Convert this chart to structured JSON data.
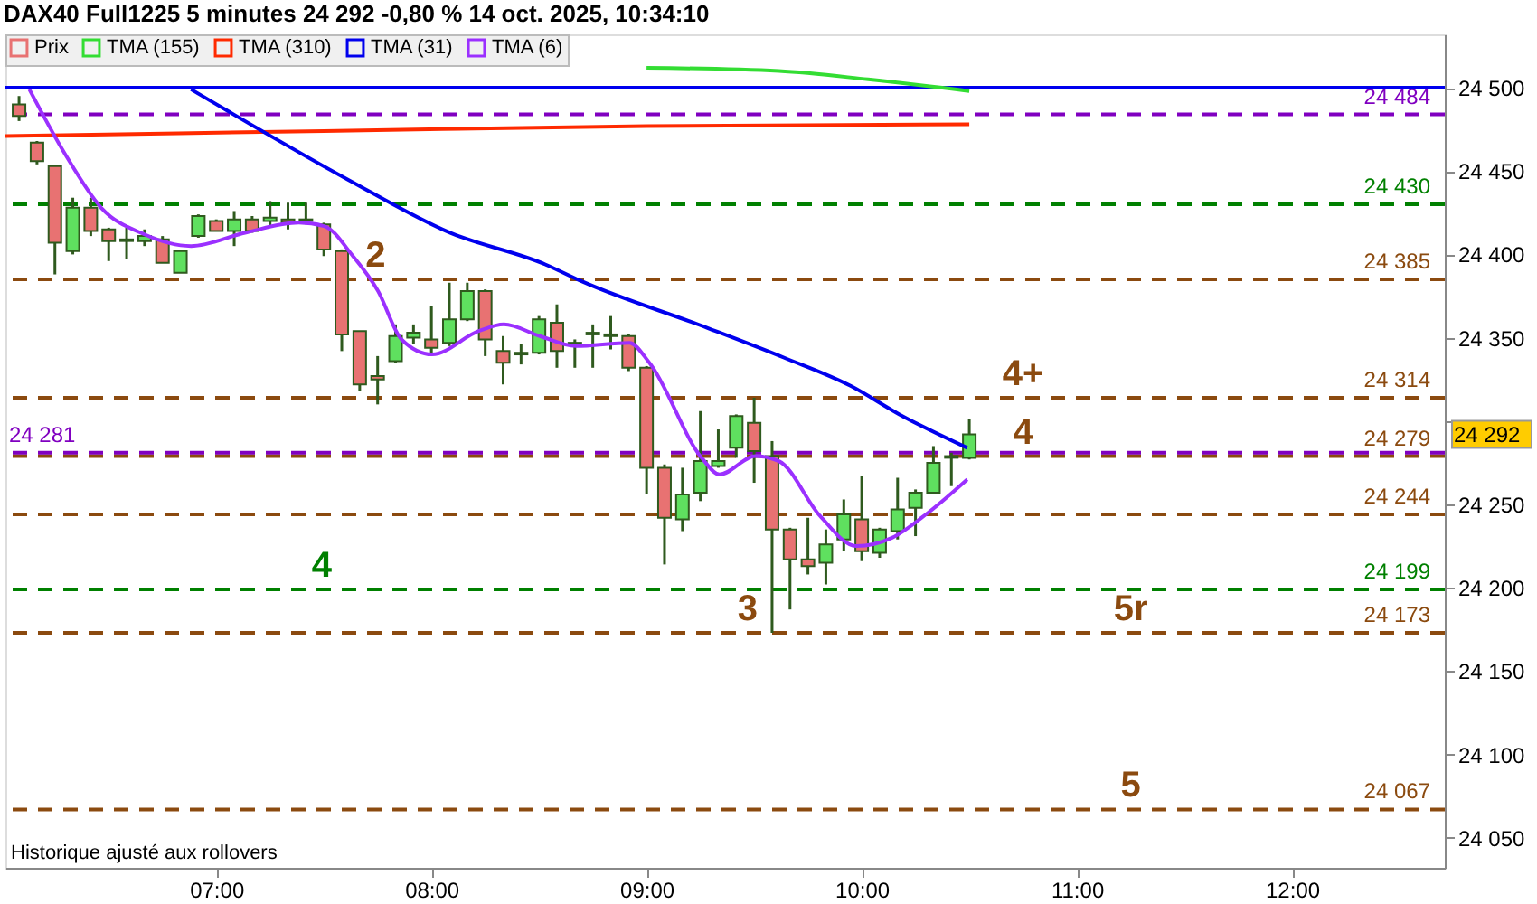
{
  "chart_data": {
    "type": "candlestick",
    "title": "DAX40 Full1225 5 minutes 24 292 -0,80 % 14 oct. 2025, 10:34:10",
    "legend": "top left",
    "grid": false,
    "xlim": [
      6.02,
      12.71
    ],
    "xticks": [
      {
        "value": 7,
        "label": "07:00"
      },
      {
        "value": 8,
        "label": "08:00"
      },
      {
        "value": 9,
        "label": "09:00"
      },
      {
        "value": 10,
        "label": "10:00"
      },
      {
        "value": 11,
        "label": "11:00"
      },
      {
        "value": 12,
        "label": "12:00"
      }
    ],
    "ylim": [
      24032,
      24532
    ],
    "yticks": [
      {
        "value": 24050,
        "label": "24 050"
      },
      {
        "value": 24100,
        "label": "24 100"
      },
      {
        "value": 24150,
        "label": "24 150"
      },
      {
        "value": 24200,
        "label": "24 200"
      },
      {
        "value": 24250,
        "label": "24 250"
      },
      {
        "value": 24300,
        "label": null
      },
      {
        "value": 24350,
        "label": "24 350"
      },
      {
        "value": 24400,
        "label": "24 400"
      },
      {
        "value": 24450,
        "label": "24 450"
      },
      {
        "value": 24500,
        "label": "24 500"
      }
    ],
    "series": [
      {
        "name": "Prix",
        "type": "candlestick",
        "color": "#e87272",
        "value_labels": [
          null,
          null,
          null,
          null,
          null,
          null,
          null,
          null,
          null,
          null,
          null,
          null,
          null,
          null,
          null,
          null,
          null,
          null,
          null,
          null,
          null,
          null,
          null,
          null,
          null,
          null,
          null,
          null,
          null,
          null,
          null,
          null,
          null,
          null,
          null,
          null,
          null,
          null,
          null,
          null,
          null,
          null,
          null,
          null,
          null,
          null,
          null,
          null,
          null,
          null,
          null,
          null,
          null,
          "24 292"
        ],
        "x": [
          6.0833,
          6.1667,
          6.25,
          6.3333,
          6.4167,
          6.5,
          6.5833,
          6.6667,
          6.75,
          6.8333,
          6.9167,
          7,
          7.0833,
          7.1667,
          7.25,
          7.3333,
          7.4167,
          7.5,
          7.5833,
          7.6667,
          7.75,
          7.8333,
          7.9167,
          8,
          8.0833,
          8.1667,
          8.25,
          8.3333,
          8.4167,
          8.5,
          8.5833,
          8.6667,
          8.75,
          8.8333,
          8.9167,
          9,
          9.0833,
          9.1667,
          9.25,
          9.3333,
          9.4167,
          9.5,
          9.5833,
          9.6667,
          9.75,
          9.8333,
          9.9167,
          10,
          10.0833,
          10.1667,
          10.25,
          10.3333,
          10.4167,
          10.5
        ],
        "ohlc": [
          [
            24490,
            24495,
            24480,
            24483
          ],
          [
            24467,
            24468,
            24454,
            24456
          ],
          [
            24453,
            24453,
            24388,
            24407
          ],
          [
            24402,
            24434,
            24400,
            24428
          ],
          [
            24428,
            24434,
            24411,
            24414
          ],
          [
            24415,
            24416,
            24396,
            24408
          ],
          [
            24408,
            24416,
            24397,
            24409
          ],
          [
            24408,
            24415,
            24405,
            24411
          ],
          [
            24409,
            24411,
            24395,
            24395
          ],
          [
            24389,
            24402,
            24389,
            24402
          ],
          [
            24411,
            24424,
            24410,
            24423
          ],
          [
            24420,
            24421,
            24414,
            24414
          ],
          [
            24414,
            24426,
            24405,
            24421
          ],
          [
            24421,
            24423,
            24413,
            24414
          ],
          [
            24420,
            24432,
            24417,
            24422
          ],
          [
            24421,
            24431,
            24415,
            24419
          ],
          [
            24420,
            24431,
            24418,
            24421
          ],
          [
            24418,
            24419,
            24399,
            24403
          ],
          [
            24402,
            24403,
            24342,
            24352
          ],
          [
            24354,
            24354,
            24318,
            24322
          ],
          [
            24327,
            24339,
            24310,
            24325
          ],
          [
            24336,
            24358,
            24335,
            24351
          ],
          [
            24350,
            24358,
            24346,
            24353
          ],
          [
            24349,
            24369,
            24340,
            24344
          ],
          [
            24347,
            24383,
            24345,
            24361
          ],
          [
            24361,
            24383,
            24360,
            24378
          ],
          [
            24378,
            24379,
            24339,
            24349
          ],
          [
            24342,
            24351,
            24322,
            24335
          ],
          [
            24340,
            24346,
            24334,
            24341
          ],
          [
            24341,
            24363,
            24340,
            24361
          ],
          [
            24359,
            24370,
            24332,
            24342
          ],
          [
            24346,
            24349,
            24332,
            24347
          ],
          [
            24352,
            24358,
            24332,
            24353
          ],
          [
            24351,
            24363,
            24343,
            24352
          ],
          [
            24351,
            24352,
            24330,
            24332
          ],
          [
            24332,
            24333,
            24256,
            24272
          ],
          [
            24272,
            24274,
            24214,
            24242
          ],
          [
            24241,
            24272,
            24234,
            24256
          ],
          [
            24257,
            24306,
            24252,
            24276
          ],
          [
            24273,
            24295,
            24272,
            24276
          ],
          [
            24284,
            24304,
            24278,
            24303
          ],
          [
            24299,
            24314,
            24263,
            24282
          ],
          [
            24279,
            24288,
            24173,
            24235
          ],
          [
            24235,
            24236,
            24187,
            24217
          ],
          [
            24217,
            24242,
            24208,
            24213
          ],
          [
            24215,
            24235,
            24202,
            24226
          ],
          [
            24229,
            24253,
            24222,
            24244
          ],
          [
            24241,
            24267,
            24216,
            24222
          ],
          [
            24221,
            24236,
            24218,
            24235
          ],
          [
            24234,
            24266,
            24229,
            24247
          ],
          [
            24248,
            24259,
            24231,
            24257
          ],
          [
            24257,
            24285,
            24256,
            24275
          ],
          [
            24278,
            24281,
            24261,
            24279
          ],
          [
            24278,
            24301,
            24277,
            24292
          ]
        ],
        "colors": [
          "#e87272",
          "#e87272",
          "#e87272",
          "#5fe05f",
          "#e87272",
          "#e87272",
          "#5fe05f",
          "#5fe05f",
          "#e87272",
          "#5fe05f",
          "#5fe05f",
          "#e87272",
          "#5fe05f",
          "#e87272",
          "#5fe05f",
          "#e87272",
          "#5fe05f",
          "#e87272",
          "#e87272",
          "#e87272",
          "#e87272",
          "#5fe05f",
          "#5fe05f",
          "#e87272",
          "#5fe05f",
          "#5fe05f",
          "#e87272",
          "#e87272",
          "#5fe05f",
          "#5fe05f",
          "#e87272",
          "#5fe05f",
          "#5fe05f",
          "#5fe05f",
          "#e87272",
          "#e87272",
          "#e87272",
          "#5fe05f",
          "#5fe05f",
          "#5fe05f",
          "#5fe05f",
          "#e87272",
          "#e87272",
          "#e87272",
          "#e87272",
          "#5fe05f",
          "#5fe05f",
          "#e87272",
          "#5fe05f",
          "#5fe05f",
          "#5fe05f",
          "#5fe05f",
          "#5fe05f",
          "#5fe05f"
        ]
      },
      {
        "name": "TMA (155)",
        "type": "line",
        "color": "#33dd33",
        "x": [
          9.0,
          9.615,
          10.03,
          10.5
        ],
        "values": [
          24512,
          24510,
          24505,
          24498
        ]
      },
      {
        "name": "TMA (310)",
        "type": "line",
        "color": "#ff2a00",
        "x": [
          6.02,
          7.5,
          9.0,
          10.5
        ],
        "values": [
          24471,
          24474,
          24477,
          24478
        ]
      },
      {
        "name": "TMA (31)",
        "type": "line",
        "color": "#0000ee",
        "x": [
          6.883,
          7.61,
          8.086,
          8.529,
          8.696,
          9.281,
          9.64,
          9.95,
          10.175,
          10.49
        ],
        "values": [
          24499,
          24445,
          24413,
          24394,
          24384,
          24356,
          24338,
          24321,
          24304,
          24284
        ]
      },
      {
        "name": "TMA (6)",
        "type": "line",
        "color": "#9b30ff",
        "x": [
          6.131,
          6.298,
          6.465,
          6.666,
          6.883,
          7.134,
          7.384,
          7.501,
          7.635,
          7.752,
          7.861,
          8.003,
          8.22,
          8.337,
          8.504,
          8.671,
          8.92,
          9.013,
          9.256,
          9.339,
          9.506,
          9.615,
          9.807,
          9.974,
          10.141,
          10.308,
          10.49
        ],
        "values": [
          24499,
          24460,
          24428,
          24412,
          24405,
          24413,
          24419,
          24417,
          24399,
          24378,
          24349,
          24340,
          24354,
          24358,
          24351,
          24345,
          24347,
          24335,
          24278,
          24268,
          24279,
          24276,
          24243,
          24225,
          24230,
          24245,
          24265
        ]
      }
    ],
    "ref_lines": [
      {
        "axis": "y",
        "value": 24500,
        "label": null,
        "color": "#0000ee",
        "line_style": "solid"
      },
      {
        "axis": "y",
        "value": 24484,
        "label": "24 484",
        "color": "#8000c0",
        "line_style": "dashed"
      },
      {
        "axis": "y",
        "value": 24430,
        "label": "24 430",
        "color": "#008000",
        "line_style": "dashed"
      },
      {
        "axis": "y",
        "value": 24385,
        "label": "24 385",
        "color": "#8b4a0f",
        "line_style": "dashed"
      },
      {
        "axis": "y",
        "value": 24314,
        "label": "24 314",
        "color": "#8b4a0f",
        "line_style": "dashed"
      },
      {
        "axis": "y",
        "value": 24279,
        "label": "24 279",
        "color": "#8b4a0f",
        "line_style": "dashed"
      },
      {
        "axis": "y",
        "value": 24281,
        "label": "24 281",
        "color": "#8000c0",
        "line_style": "dashed"
      },
      {
        "axis": "y",
        "value": 24244,
        "label": "24 244",
        "color": "#8b4a0f",
        "line_style": "dashed"
      },
      {
        "axis": "y",
        "value": 24199,
        "label": "24 199",
        "color": "#008000",
        "line_style": "dashed"
      },
      {
        "axis": "y",
        "value": 24173,
        "label": "24 173",
        "color": "#8b4a0f",
        "line_style": "dashed"
      },
      {
        "axis": "y",
        "value": 24067,
        "label": "24 067",
        "color": "#8b4a0f",
        "line_style": "dashed"
      }
    ],
    "annotations": [
      {
        "text": "2",
        "x": 7.74,
        "y": 24385
      },
      {
        "text": "4",
        "x": 7.49,
        "y": 24199
      },
      {
        "text": "3",
        "x": 9.47,
        "y": 24173
      },
      {
        "text": "4+",
        "x": 10.75,
        "y": 24314
      },
      {
        "text": "4",
        "x": 10.75,
        "y": 24279
      },
      {
        "text": "5r",
        "x": 11.25,
        "y": 24173
      },
      {
        "text": "5",
        "x": 11.25,
        "y": 24067
      },
      "Historique ajusté aux rollovers"
    ]
  }
}
